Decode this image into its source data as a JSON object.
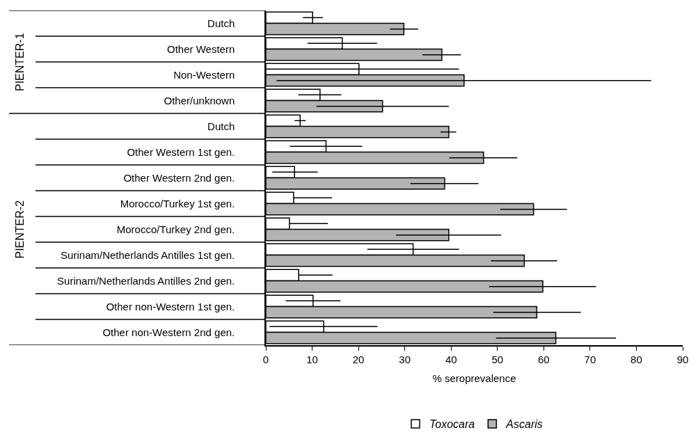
{
  "chart_data": {
    "type": "bar",
    "orientation": "horizontal",
    "xlabel": "% seroprevalence",
    "categories": [
      "Dutch",
      "Other Western",
      "Non-Western",
      "Other/unknown",
      "Dutch",
      "Other Western 1st gen.",
      "Other Western 2nd gen.",
      "Morocco/Turkey 1st gen.",
      "Morocco/Turkey 2nd gen.",
      "Surinam/Netherlands Antilles 1st gen.",
      "Surinam/Netherlands Antilles 2nd gen.",
      "Other non-Western 1st gen.",
      "Other non-Western 2nd gen."
    ],
    "series": [
      {
        "name": "Toxocara",
        "color": "#ffffff",
        "values": [
          10.1,
          16.5,
          20.1,
          11.7,
          7.4,
          13.0,
          6.2,
          6.0,
          5.1,
          31.8,
          7.1,
          10.2,
          12.5
        ],
        "errors": [
          [
            8.0,
            12.3
          ],
          [
            9.0,
            24.0
          ],
          [
            0,
            41.7
          ],
          [
            7.0,
            16.3
          ],
          [
            6.2,
            8.6
          ],
          [
            5.2,
            20.8
          ],
          [
            1.4,
            11.2
          ],
          [
            6.0,
            14.3
          ],
          [
            5.1,
            13.4
          ],
          [
            21.9,
            41.7
          ],
          [
            7.1,
            14.4
          ],
          [
            4.3,
            16.1
          ],
          [
            0.8,
            24.1
          ]
        ]
      },
      {
        "name": "Ascaris",
        "color": "#b3b3b3",
        "values": [
          29.8,
          38.0,
          42.8,
          25.2,
          39.5,
          47.0,
          38.6,
          57.8,
          39.5,
          55.8,
          59.8,
          58.5,
          62.6
        ],
        "errors": [
          [
            26.8,
            32.9
          ],
          [
            33.8,
            42.1
          ],
          [
            2.3,
            83.2
          ],
          [
            10.9,
            39.5
          ],
          [
            37.7,
            41.1
          ],
          [
            39.6,
            54.3
          ],
          [
            31.2,
            45.9
          ],
          [
            50.6,
            65.0
          ],
          [
            28.1,
            50.8
          ],
          [
            48.6,
            62.9
          ],
          [
            48.2,
            71.3
          ],
          [
            49.1,
            68.0
          ],
          [
            49.7,
            75.6
          ]
        ]
      }
    ],
    "xlim": [
      0,
      90
    ],
    "xticks": [
      0,
      10,
      20,
      30,
      40,
      50,
      60,
      70,
      80,
      90
    ],
    "legend": "bottom",
    "annotations": [
      "PIENTER-1",
      "PIENTER-2"
    ]
  }
}
